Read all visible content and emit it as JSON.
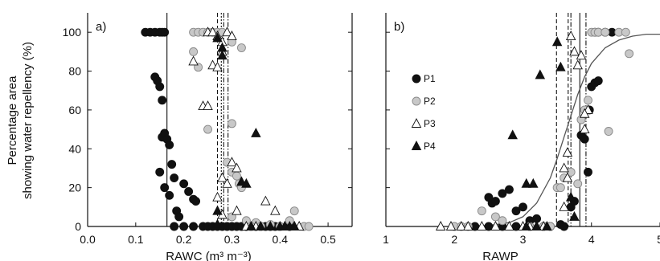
{
  "figure": {
    "ylabel_line1": "Percentage area",
    "ylabel_line2": "showing water repellency (%)"
  },
  "chart_data": [
    {
      "type": "scatter",
      "panel_label": "a)",
      "xlabel": "RAWC (m³ m⁻³)",
      "ylabel": "Percentage area showing water repellency (%)",
      "xlim": [
        0.0,
        0.55
      ],
      "ylim": [
        0,
        110
      ],
      "xticks": [
        0.0,
        0.1,
        0.2,
        0.3,
        0.4,
        0.5
      ],
      "xtick_labels": [
        "0.0",
        "0.1",
        "0.2",
        "0.3",
        "0.4",
        "0.5"
      ],
      "yticks": [
        0,
        20,
        40,
        60,
        80,
        100
      ],
      "ytick_labels": [
        "0",
        "20",
        "40",
        "60",
        "80",
        "100"
      ],
      "grid": false,
      "vlines": [
        {
          "x": 0.165,
          "style": "solid"
        },
        {
          "x": 0.27,
          "style": "dashed"
        },
        {
          "x": 0.278,
          "style": "dotted"
        },
        {
          "x": 0.283,
          "style": "dashdot"
        },
        {
          "x": 0.292,
          "style": "dashdot"
        }
      ],
      "series": [
        {
          "name": "P1",
          "marker": "circle",
          "color": "#111111",
          "points": [
            [
              0.12,
              100
            ],
            [
              0.13,
              100
            ],
            [
              0.14,
              100
            ],
            [
              0.15,
              100
            ],
            [
              0.155,
              100
            ],
            [
              0.16,
              100
            ],
            [
              0.14,
              77
            ],
            [
              0.145,
              75
            ],
            [
              0.15,
              72
            ],
            [
              0.155,
              65
            ],
            [
              0.15,
              28
            ],
            [
              0.155,
              46
            ],
            [
              0.16,
              48
            ],
            [
              0.165,
              45
            ],
            [
              0.17,
              42
            ],
            [
              0.175,
              32
            ],
            [
              0.18,
              25
            ],
            [
              0.16,
              20
            ],
            [
              0.17,
              16
            ],
            [
              0.185,
              8
            ],
            [
              0.19,
              5
            ],
            [
              0.2,
              22
            ],
            [
              0.21,
              18
            ],
            [
              0.22,
              14
            ],
            [
              0.225,
              13
            ],
            [
              0.18,
              0
            ],
            [
              0.2,
              0
            ],
            [
              0.22,
              0
            ],
            [
              0.24,
              0
            ],
            [
              0.25,
              0
            ],
            [
              0.26,
              0
            ],
            [
              0.27,
              0
            ],
            [
              0.28,
              0
            ],
            [
              0.29,
              0
            ],
            [
              0.3,
              0
            ],
            [
              0.31,
              0
            ],
            [
              0.32,
              0
            ],
            [
              0.33,
              0
            ],
            [
              0.34,
              0
            ],
            [
              0.35,
              0
            ],
            [
              0.36,
              0
            ],
            [
              0.37,
              0
            ],
            [
              0.38,
              0
            ],
            [
              0.39,
              0
            ],
            [
              0.4,
              0
            ],
            [
              0.42,
              0
            ]
          ]
        },
        {
          "name": "P2",
          "marker": "circle",
          "color": "#c8c8c8",
          "points": [
            [
              0.22,
              100
            ],
            [
              0.23,
              100
            ],
            [
              0.24,
              100
            ],
            [
              0.25,
              100
            ],
            [
              0.26,
              100
            ],
            [
              0.27,
              100
            ],
            [
              0.28,
              100
            ],
            [
              0.22,
              90
            ],
            [
              0.23,
              82
            ],
            [
              0.25,
              50
            ],
            [
              0.3,
              95
            ],
            [
              0.32,
              92
            ],
            [
              0.3,
              53
            ],
            [
              0.29,
              33
            ],
            [
              0.3,
              28
            ],
            [
              0.31,
              26
            ],
            [
              0.315,
              22
            ],
            [
              0.32,
              20
            ],
            [
              0.3,
              5
            ],
            [
              0.33,
              3
            ],
            [
              0.35,
              2
            ],
            [
              0.38,
              1
            ],
            [
              0.4,
              0
            ],
            [
              0.42,
              3
            ],
            [
              0.43,
              8
            ],
            [
              0.45,
              0
            ],
            [
              0.46,
              0
            ],
            [
              0.36,
              0
            ],
            [
              0.34,
              0
            ]
          ]
        },
        {
          "name": "P3",
          "marker": "triangle-open",
          "color": "#ffffff",
          "points": [
            [
              0.25,
              100
            ],
            [
              0.26,
              100
            ],
            [
              0.27,
              98
            ],
            [
              0.28,
              95
            ],
            [
              0.29,
              100
            ],
            [
              0.3,
              98
            ],
            [
              0.22,
              85
            ],
            [
              0.26,
              83
            ],
            [
              0.27,
              82
            ],
            [
              0.28,
              90
            ],
            [
              0.24,
              62
            ],
            [
              0.25,
              62
            ],
            [
              0.27,
              15
            ],
            [
              0.28,
              25
            ],
            [
              0.29,
              22
            ],
            [
              0.3,
              33
            ],
            [
              0.31,
              30
            ],
            [
              0.31,
              8
            ],
            [
              0.28,
              6
            ],
            [
              0.37,
              13
            ],
            [
              0.39,
              8
            ],
            [
              0.33,
              0
            ],
            [
              0.35,
              0
            ],
            [
              0.38,
              0
            ],
            [
              0.41,
              0
            ],
            [
              0.43,
              0
            ],
            [
              0.44,
              0
            ]
          ]
        },
        {
          "name": "P4",
          "marker": "triangle",
          "color": "#111111",
          "points": [
            [
              0.27,
              97
            ],
            [
              0.28,
              92
            ],
            [
              0.28,
              88
            ],
            [
              0.35,
              48
            ],
            [
              0.32,
              23
            ],
            [
              0.33,
              22
            ],
            [
              0.27,
              8
            ],
            [
              0.27,
              1
            ],
            [
              0.34,
              0
            ],
            [
              0.36,
              0
            ],
            [
              0.38,
              0
            ],
            [
              0.4,
              0
            ],
            [
              0.41,
              0
            ],
            [
              0.42,
              0
            ],
            [
              0.43,
              0
            ]
          ]
        }
      ]
    },
    {
      "type": "scatter",
      "panel_label": "b)",
      "xlabel": "RAWP",
      "ylabel": "",
      "xlim": [
        1,
        5
      ],
      "ylim": [
        0,
        110
      ],
      "xticks": [
        1,
        2,
        3,
        4,
        5
      ],
      "xtick_labels": [
        "1",
        "2",
        "3",
        "4",
        "5"
      ],
      "yticks": [
        0,
        20,
        40,
        60,
        80,
        100
      ],
      "ytick_labels": [
        "",
        "",
        "",
        "",
        "",
        ""
      ],
      "grid": false,
      "legend": {
        "placement": "center-left",
        "entries": [
          "P1",
          "P2",
          "P3",
          "P4"
        ]
      },
      "vlines": [
        {
          "x": 3.49,
          "style": "dashed"
        },
        {
          "x": 3.66,
          "style": "dashed"
        },
        {
          "x": 3.7,
          "style": "dashdot"
        },
        {
          "x": 3.83,
          "style": "solid"
        },
        {
          "x": 3.92,
          "style": "dashdot"
        }
      ],
      "curve": {
        "style": "solid",
        "x": [
          2.0,
          2.5,
          2.8,
          3.0,
          3.2,
          3.4,
          3.5,
          3.6,
          3.7,
          3.8,
          3.9,
          4.0,
          4.2,
          4.4,
          4.6,
          4.8,
          5.0
        ],
        "y": [
          0,
          0.5,
          2,
          5,
          12,
          25,
          35,
          46,
          57,
          68,
          77,
          84,
          92,
          96,
          98,
          99,
          99
        ]
      },
      "series": [
        {
          "name": "P1",
          "marker": "circle",
          "color": "#111111",
          "points": [
            [
              2.5,
              15
            ],
            [
              2.55,
              12
            ],
            [
              2.6,
              13
            ],
            [
              2.7,
              17
            ],
            [
              2.8,
              19
            ],
            [
              2.9,
              8
            ],
            [
              3.0,
              10
            ],
            [
              3.1,
              3
            ],
            [
              3.2,
              4
            ],
            [
              3.55,
              1
            ],
            [
              3.6,
              0
            ],
            [
              3.7,
              10
            ],
            [
              3.75,
              13
            ],
            [
              3.85,
              47
            ],
            [
              3.9,
              45
            ],
            [
              3.95,
              28
            ],
            [
              3.97,
              60
            ],
            [
              4.0,
              72
            ],
            [
              4.05,
              74
            ],
            [
              4.1,
              75
            ],
            [
              4.05,
              100
            ],
            [
              4.1,
              100
            ],
            [
              4.2,
              100
            ],
            [
              4.3,
              100
            ],
            [
              2.3,
              0
            ],
            [
              2.5,
              0
            ],
            [
              2.7,
              0
            ],
            [
              2.9,
              0
            ],
            [
              3.1,
              0
            ],
            [
              3.3,
              0
            ],
            [
              3.4,
              0
            ]
          ]
        },
        {
          "name": "P2",
          "marker": "circle",
          "color": "#c8c8c8",
          "points": [
            [
              2.0,
              0
            ],
            [
              2.1,
              0
            ],
            [
              2.2,
              0
            ],
            [
              2.4,
              8
            ],
            [
              2.6,
              5
            ],
            [
              2.7,
              3
            ],
            [
              3.1,
              0
            ],
            [
              3.3,
              0
            ],
            [
              3.4,
              0
            ],
            [
              3.5,
              20
            ],
            [
              3.55,
              20
            ],
            [
              3.6,
              25
            ],
            [
              3.7,
              28
            ],
            [
              3.8,
              22
            ],
            [
              3.85,
              55
            ],
            [
              3.9,
              60
            ],
            [
              3.95,
              65
            ],
            [
              4.0,
              100
            ],
            [
              4.05,
              100
            ],
            [
              4.1,
              100
            ],
            [
              4.2,
              100
            ],
            [
              4.4,
              100
            ],
            [
              4.5,
              100
            ],
            [
              4.55,
              89
            ],
            [
              4.25,
              49
            ]
          ]
        },
        {
          "name": "P3",
          "marker": "triangle-open",
          "color": "#ffffff",
          "points": [
            [
              1.8,
              0
            ],
            [
              1.95,
              0
            ],
            [
              2.1,
              0
            ],
            [
              2.2,
              0
            ],
            [
              2.4,
              0
            ],
            [
              2.6,
              0
            ],
            [
              2.8,
              0
            ],
            [
              3.0,
              0
            ],
            [
              3.1,
              0
            ],
            [
              3.2,
              0
            ],
            [
              3.3,
              0
            ],
            [
              3.6,
              10
            ],
            [
              3.65,
              38
            ],
            [
              3.7,
              98
            ],
            [
              3.75,
              90
            ],
            [
              3.8,
              83
            ],
            [
              3.85,
              88
            ],
            [
              3.9,
              50
            ],
            [
              3.95,
              60
            ],
            [
              3.9,
              58
            ],
            [
              3.6,
              30
            ],
            [
              3.65,
              25
            ]
          ]
        },
        {
          "name": "P4",
          "marker": "triangle",
          "color": "#111111",
          "points": [
            [
              2.85,
              47
            ],
            [
              3.05,
              22
            ],
            [
              3.15,
              22
            ],
            [
              3.25,
              78
            ],
            [
              3.5,
              95
            ],
            [
              3.55,
              82
            ],
            [
              3.7,
              15
            ],
            [
              3.75,
              5
            ],
            [
              3.05,
              0
            ],
            [
              3.2,
              0
            ],
            [
              3.35,
              0
            ]
          ]
        }
      ]
    }
  ]
}
